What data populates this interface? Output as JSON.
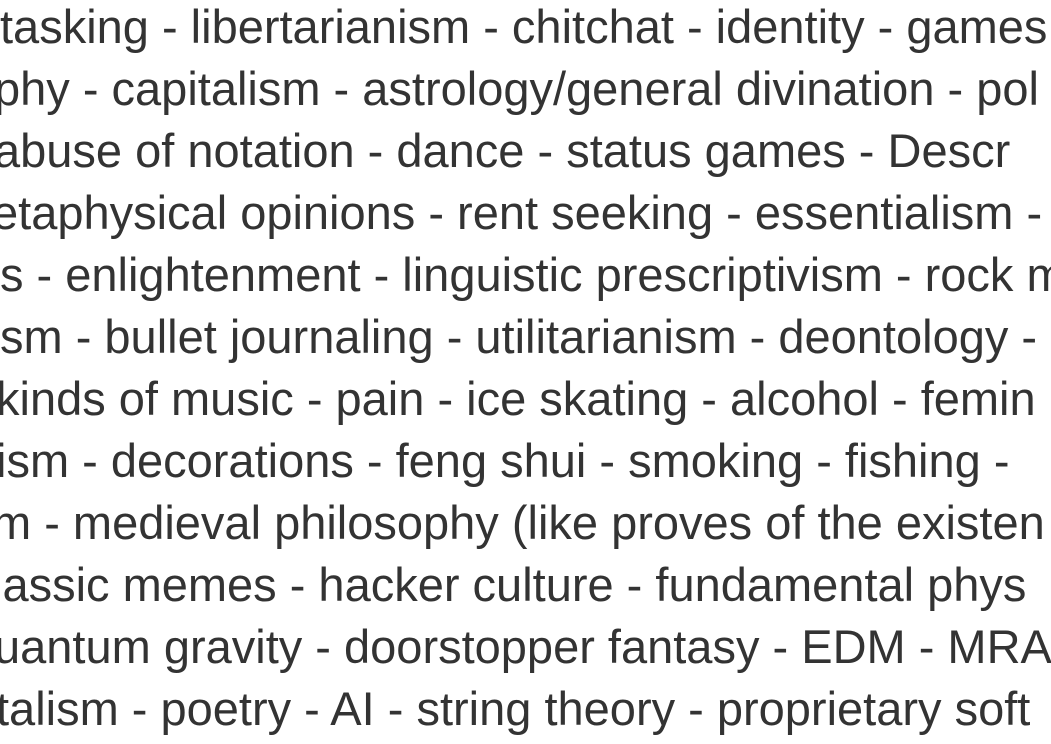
{
  "text_color": "#333333",
  "background_color": "#ffffff",
  "lines": [
    "tasking - libertarianism - chitchat - identity - games",
    "phy - capitalism - astrology/general divination - pol",
    " abuse of notation - dance - status games - Descr",
    "etaphysical opinions - rent seeking - essentialism -",
    "s - enlightenment - linguistic prescriptivism - rock m",
    "sm - bullet journaling - utilitarianism - deontology -",
    "kinds of music - pain - ice skating - alcohol - femin",
    "ism - decorations - feng shui - smoking - fishing -",
    "m - medieval philosophy (like proves of the existen",
    "lassic memes - hacker culture - fundamental phys",
    "uantum gravity - doorstopper fantasy - EDM - MRA",
    "talism - poetry - AI - string theory - proprietary soft"
  ]
}
